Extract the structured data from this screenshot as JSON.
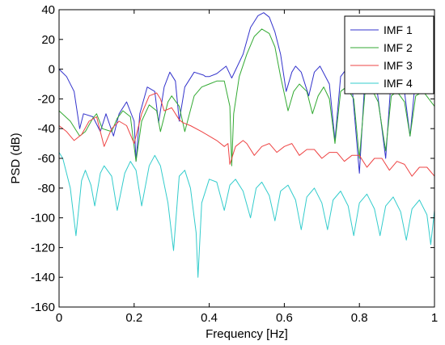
{
  "chart_data": {
    "type": "line",
    "xlabel": "Frequency [Hz]",
    "ylabel": "PSD (dB)",
    "xlim": [
      0,
      1
    ],
    "ylim": [
      -160,
      40
    ],
    "xticks": [
      0,
      0.2,
      0.4,
      0.6,
      0.8,
      1
    ],
    "xtick_labels": [
      "0",
      "0.2",
      "0.4",
      "0.6",
      "0.8",
      "1"
    ],
    "yticks": [
      40,
      20,
      0,
      -20,
      -40,
      -60,
      -80,
      -100,
      -120,
      -140,
      -160
    ],
    "ytick_labels": [
      "40",
      "20",
      "0",
      "-20",
      "-40",
      "-60",
      "-80",
      "-100",
      "-120",
      "-140",
      "-160"
    ],
    "grid": false,
    "legend_position": "top-right",
    "series": [
      {
        "name": "IMF 1",
        "color": "#3333cc",
        "points": [
          [
            0,
            0
          ],
          [
            0.02,
            -5
          ],
          [
            0.04,
            -15
          ],
          [
            0.055,
            -40
          ],
          [
            0.065,
            -30
          ],
          [
            0.09,
            -32
          ],
          [
            0.11,
            -42
          ],
          [
            0.125,
            -30
          ],
          [
            0.145,
            -45
          ],
          [
            0.16,
            -30
          ],
          [
            0.18,
            -22
          ],
          [
            0.2,
            -35
          ],
          [
            0.205,
            -62
          ],
          [
            0.215,
            -30
          ],
          [
            0.235,
            -12
          ],
          [
            0.255,
            -15
          ],
          [
            0.265,
            -36
          ],
          [
            0.28,
            -12
          ],
          [
            0.295,
            -2
          ],
          [
            0.31,
            -8
          ],
          [
            0.32,
            -35
          ],
          [
            0.335,
            -12
          ],
          [
            0.36,
            -2
          ],
          [
            0.385,
            -4
          ],
          [
            0.39,
            -5
          ],
          [
            0.4,
            -5
          ],
          [
            0.42,
            -3
          ],
          [
            0.445,
            2
          ],
          [
            0.46,
            -6
          ],
          [
            0.475,
            2
          ],
          [
            0.49,
            10
          ],
          [
            0.51,
            28
          ],
          [
            0.53,
            36
          ],
          [
            0.545,
            38
          ],
          [
            0.56,
            35
          ],
          [
            0.575,
            25
          ],
          [
            0.59,
            10
          ],
          [
            0.605,
            -15
          ],
          [
            0.62,
            -2
          ],
          [
            0.63,
            2
          ],
          [
            0.645,
            -2
          ],
          [
            0.665,
            -18
          ],
          [
            0.68,
            -2
          ],
          [
            0.695,
            2
          ],
          [
            0.72,
            -10
          ],
          [
            0.735,
            -48
          ],
          [
            0.75,
            -5
          ],
          [
            0.765,
            0
          ],
          [
            0.78,
            -10
          ],
          [
            0.8,
            -70
          ],
          [
            0.815,
            -5
          ],
          [
            0.83,
            2
          ],
          [
            0.845,
            -10
          ],
          [
            0.87,
            -60
          ],
          [
            0.885,
            -5
          ],
          [
            0.9,
            2
          ],
          [
            0.92,
            -15
          ],
          [
            0.935,
            -45
          ],
          [
            0.95,
            -5
          ],
          [
            0.97,
            0
          ],
          [
            1,
            -5
          ]
        ]
      },
      {
        "name": "IMF 2",
        "color": "#33aa33",
        "points": [
          [
            0,
            -28
          ],
          [
            0.03,
            -35
          ],
          [
            0.055,
            -45
          ],
          [
            0.07,
            -42
          ],
          [
            0.09,
            -33
          ],
          [
            0.1,
            -30
          ],
          [
            0.115,
            -40
          ],
          [
            0.14,
            -42
          ],
          [
            0.155,
            -33
          ],
          [
            0.17,
            -28
          ],
          [
            0.19,
            -32
          ],
          [
            0.205,
            -62
          ],
          [
            0.22,
            -35
          ],
          [
            0.24,
            -24
          ],
          [
            0.26,
            -28
          ],
          [
            0.27,
            -42
          ],
          [
            0.29,
            -22
          ],
          [
            0.3,
            -18
          ],
          [
            0.32,
            -25
          ],
          [
            0.335,
            -42
          ],
          [
            0.36,
            -18
          ],
          [
            0.38,
            -12
          ],
          [
            0.4,
            -10
          ],
          [
            0.42,
            -8
          ],
          [
            0.44,
            -8
          ],
          [
            0.455,
            -25
          ],
          [
            0.46,
            -65
          ],
          [
            0.465,
            -30
          ],
          [
            0.48,
            -5
          ],
          [
            0.5,
            10
          ],
          [
            0.52,
            22
          ],
          [
            0.54,
            27
          ],
          [
            0.56,
            24
          ],
          [
            0.575,
            15
          ],
          [
            0.59,
            -5
          ],
          [
            0.61,
            -28
          ],
          [
            0.625,
            -15
          ],
          [
            0.64,
            -10
          ],
          [
            0.66,
            -15
          ],
          [
            0.675,
            -30
          ],
          [
            0.69,
            -18
          ],
          [
            0.705,
            -12
          ],
          [
            0.72,
            -20
          ],
          [
            0.735,
            -50
          ],
          [
            0.75,
            -15
          ],
          [
            0.765,
            -12
          ],
          [
            0.785,
            -20
          ],
          [
            0.8,
            -60
          ],
          [
            0.815,
            -15
          ],
          [
            0.83,
            -12
          ],
          [
            0.85,
            -22
          ],
          [
            0.87,
            -55
          ],
          [
            0.885,
            -18
          ],
          [
            0.9,
            -15
          ],
          [
            0.92,
            -22
          ],
          [
            0.935,
            -45
          ],
          [
            0.95,
            -18
          ],
          [
            0.97,
            -15
          ],
          [
            1,
            -25
          ]
        ]
      },
      {
        "name": "IMF 3",
        "color": "#ee4444",
        "points": [
          [
            0,
            -38
          ],
          [
            0.02,
            -42
          ],
          [
            0.04,
            -48
          ],
          [
            0.06,
            -44
          ],
          [
            0.08,
            -35
          ],
          [
            0.1,
            -32
          ],
          [
            0.12,
            -52
          ],
          [
            0.14,
            -40
          ],
          [
            0.16,
            -35
          ],
          [
            0.18,
            -38
          ],
          [
            0.2,
            -50
          ],
          [
            0.22,
            -30
          ],
          [
            0.24,
            -18
          ],
          [
            0.26,
            -16
          ],
          [
            0.27,
            -20
          ],
          [
            0.28,
            -28
          ],
          [
            0.3,
            -26
          ],
          [
            0.32,
            -34
          ],
          [
            0.33,
            -36
          ],
          [
            0.35,
            -38
          ],
          [
            0.38,
            -42
          ],
          [
            0.4,
            -45
          ],
          [
            0.42,
            -48
          ],
          [
            0.44,
            -52
          ],
          [
            0.45,
            -50
          ],
          [
            0.455,
            -64
          ],
          [
            0.47,
            -52
          ],
          [
            0.49,
            -48
          ],
          [
            0.5,
            -50
          ],
          [
            0.52,
            -58
          ],
          [
            0.54,
            -52
          ],
          [
            0.56,
            -50
          ],
          [
            0.58,
            -56
          ],
          [
            0.6,
            -52
          ],
          [
            0.62,
            -50
          ],
          [
            0.64,
            -58
          ],
          [
            0.66,
            -54
          ],
          [
            0.68,
            -54
          ],
          [
            0.7,
            -60
          ],
          [
            0.72,
            -56
          ],
          [
            0.74,
            -56
          ],
          [
            0.76,
            -62
          ],
          [
            0.78,
            -58
          ],
          [
            0.8,
            -58
          ],
          [
            0.82,
            -66
          ],
          [
            0.84,
            -60
          ],
          [
            0.86,
            -60
          ],
          [
            0.88,
            -68
          ],
          [
            0.9,
            -62
          ],
          [
            0.92,
            -64
          ],
          [
            0.94,
            -72
          ],
          [
            0.96,
            -66
          ],
          [
            0.98,
            -66
          ],
          [
            1,
            -72
          ]
        ]
      },
      {
        "name": "IMF 4",
        "color": "#33cccc",
        "points": [
          [
            0,
            -56
          ],
          [
            0.01,
            -60
          ],
          [
            0.03,
            -80
          ],
          [
            0.045,
            -112
          ],
          [
            0.06,
            -75
          ],
          [
            0.07,
            -68
          ],
          [
            0.085,
            -78
          ],
          [
            0.095,
            -92
          ],
          [
            0.11,
            -70
          ],
          [
            0.12,
            -65
          ],
          [
            0.14,
            -72
          ],
          [
            0.155,
            -95
          ],
          [
            0.175,
            -70
          ],
          [
            0.19,
            -62
          ],
          [
            0.205,
            -68
          ],
          [
            0.22,
            -92
          ],
          [
            0.24,
            -65
          ],
          [
            0.255,
            -58
          ],
          [
            0.27,
            -65
          ],
          [
            0.29,
            -90
          ],
          [
            0.305,
            -122
          ],
          [
            0.32,
            -72
          ],
          [
            0.335,
            -68
          ],
          [
            0.35,
            -80
          ],
          [
            0.365,
            -110
          ],
          [
            0.37,
            -140
          ],
          [
            0.38,
            -90
          ],
          [
            0.4,
            -74
          ],
          [
            0.42,
            -76
          ],
          [
            0.44,
            -95
          ],
          [
            0.455,
            -78
          ],
          [
            0.47,
            -74
          ],
          [
            0.49,
            -82
          ],
          [
            0.51,
            -100
          ],
          [
            0.525,
            -80
          ],
          [
            0.54,
            -76
          ],
          [
            0.56,
            -85
          ],
          [
            0.575,
            -102
          ],
          [
            0.59,
            -82
          ],
          [
            0.61,
            -78
          ],
          [
            0.63,
            -88
          ],
          [
            0.645,
            -108
          ],
          [
            0.66,
            -86
          ],
          [
            0.68,
            -80
          ],
          [
            0.7,
            -90
          ],
          [
            0.715,
            -108
          ],
          [
            0.73,
            -88
          ],
          [
            0.75,
            -82
          ],
          [
            0.77,
            -92
          ],
          [
            0.785,
            -112
          ],
          [
            0.8,
            -90
          ],
          [
            0.82,
            -84
          ],
          [
            0.84,
            -94
          ],
          [
            0.855,
            -112
          ],
          [
            0.87,
            -92
          ],
          [
            0.89,
            -86
          ],
          [
            0.91,
            -96
          ],
          [
            0.925,
            -115
          ],
          [
            0.94,
            -94
          ],
          [
            0.96,
            -88
          ],
          [
            0.98,
            -98
          ],
          [
            0.99,
            -118
          ],
          [
            1,
            -95
          ]
        ]
      }
    ]
  }
}
